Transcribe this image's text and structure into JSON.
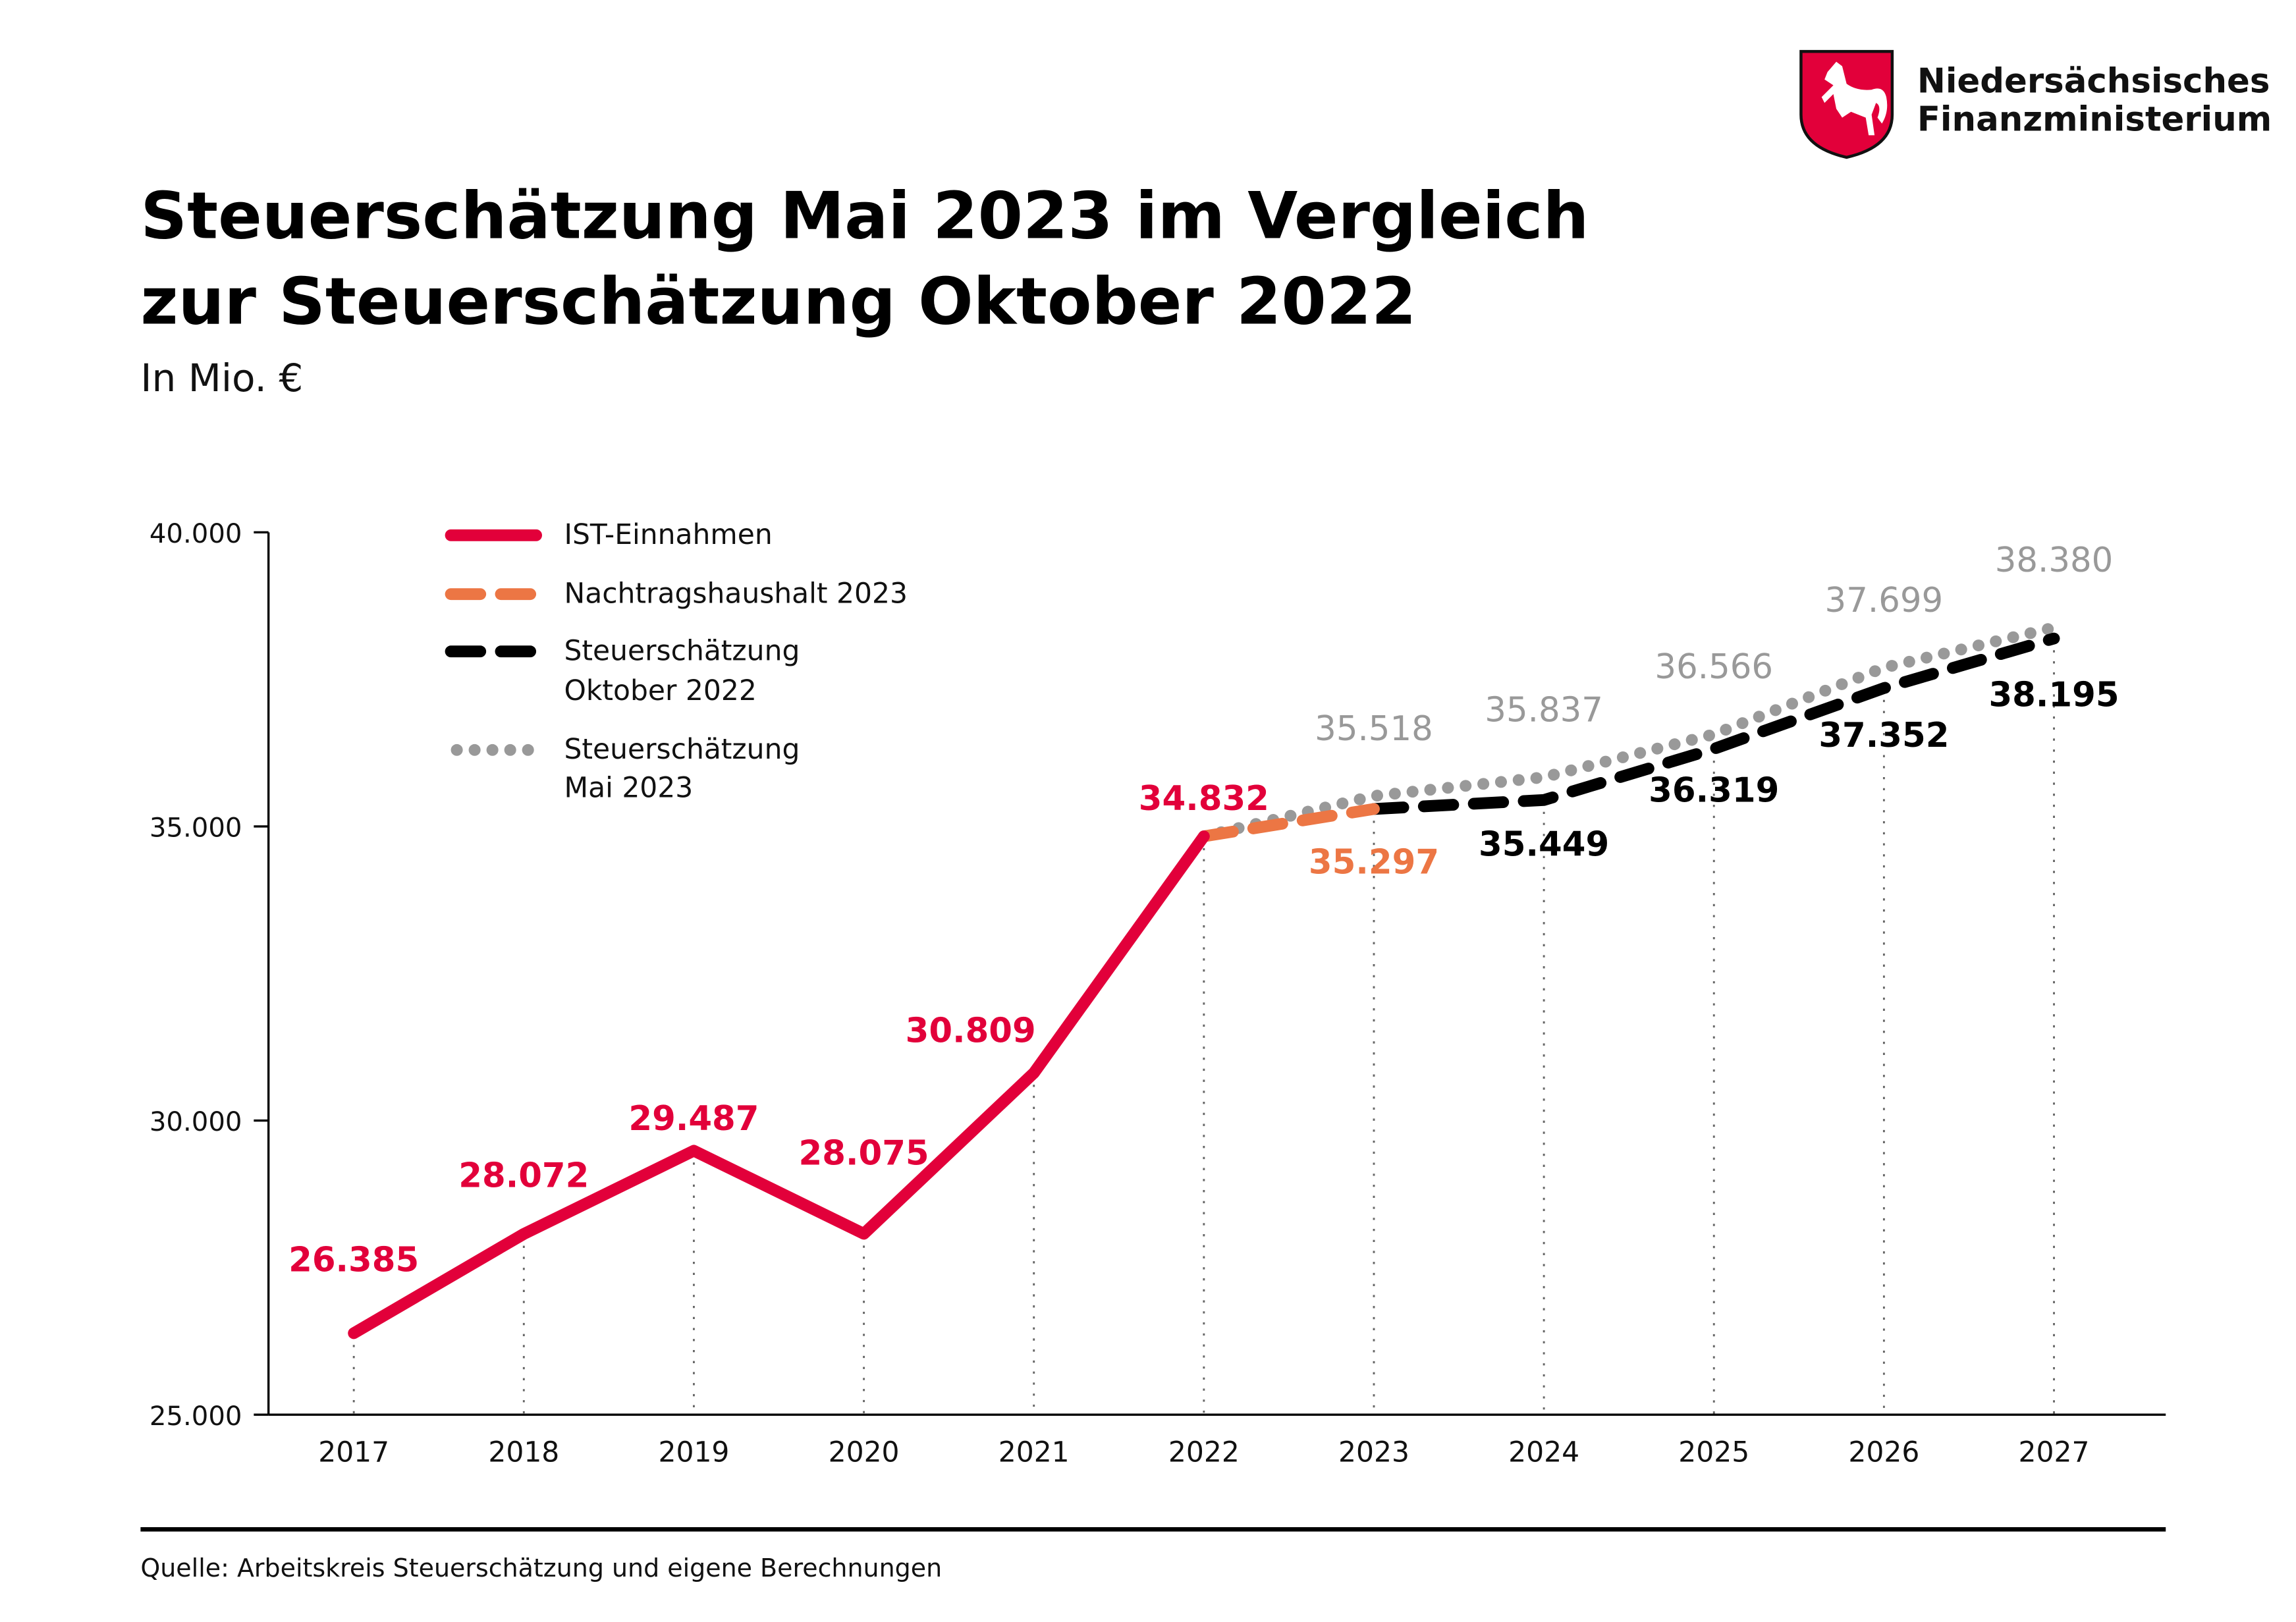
{
  "header": {
    "title_line1": "Steuerschätzung Mai 2023 im Vergleich",
    "title_line2": "zur Steuerschätzung Oktober 2022",
    "subtitle": "In Mio. €"
  },
  "logo": {
    "line1": "Niedersächsisches",
    "line2": "Finanzministerium",
    "shield_color": "#e2003a"
  },
  "footer": {
    "source": "Quelle: Arbeitskreis Steuerschätzung und eigene Berechnungen"
  },
  "chart_data": {
    "type": "line",
    "title": "Steuerschätzung Mai 2023 im Vergleich zur Steuerschätzung Oktober 2022",
    "ylabel": "In Mio. €",
    "xlabel": "",
    "x": [
      "2017",
      "2018",
      "2019",
      "2020",
      "2021",
      "2022",
      "2023",
      "2024",
      "2025",
      "2026",
      "2027"
    ],
    "ylim": [
      25000,
      40000
    ],
    "yticks": [
      25000,
      30000,
      35000,
      40000
    ],
    "ytick_labels": [
      "25.000",
      "30.000",
      "35.000",
      "40.000"
    ],
    "legend_position": "top-left",
    "series": [
      {
        "name": "IST-Einnahmen",
        "style": "solid",
        "color": "#e2003a",
        "x": [
          "2017",
          "2018",
          "2019",
          "2020",
          "2021",
          "2022"
        ],
        "values": [
          26385,
          28072,
          29487,
          28075,
          30809,
          34832
        ],
        "labels": [
          "26.385",
          "28.072",
          "29.487",
          "28.075",
          "30.809",
          "34.832"
        ]
      },
      {
        "name": "Nachtragshaushalt 2023",
        "style": "dashed",
        "color": "#ec7644",
        "x": [
          "2022",
          "2023"
        ],
        "values": [
          34832,
          35297
        ],
        "labels": [
          null,
          "35.297"
        ]
      },
      {
        "name": "Steuerschätzung Oktober 2022",
        "name_line1": "Steuerschätzung",
        "name_line2": "Oktober 2022",
        "style": "dashed",
        "color": "#000000",
        "x": [
          "2023",
          "2024",
          "2025",
          "2026",
          "2027"
        ],
        "values": [
          35297,
          35449,
          36319,
          37352,
          38195
        ],
        "labels": [
          null,
          "35.449",
          "36.319",
          "37.352",
          "38.195"
        ]
      },
      {
        "name": "Steuerschätzung Mai 2023",
        "name_line1": "Steuerschätzung",
        "name_line2": "Mai 2023",
        "style": "dotted",
        "color": "#999999",
        "x": [
          "2022",
          "2023",
          "2024",
          "2025",
          "2026",
          "2027"
        ],
        "values": [
          34832,
          35518,
          35837,
          36566,
          37699,
          38380
        ],
        "labels": [
          null,
          "35.518",
          "35.837",
          "36.566",
          "37.699",
          "38.380"
        ]
      }
    ]
  }
}
